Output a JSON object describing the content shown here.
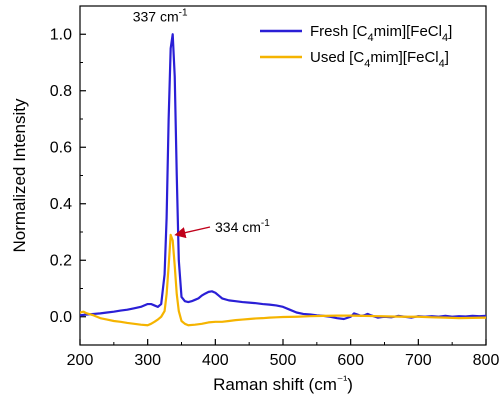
{
  "chart_data": {
    "type": "line",
    "title": "",
    "xlabel": "Raman shift (cm⁻¹)",
    "ylabel": "Normalized Intensity",
    "xlim": [
      200,
      800
    ],
    "ylim": [
      -0.1,
      1.1
    ],
    "x_ticks": [
      200,
      300,
      400,
      500,
      600,
      700,
      800
    ],
    "y_ticks": [
      0.0,
      0.2,
      0.4,
      0.6,
      0.8,
      1.0
    ],
    "x_tick_labels": [
      "200",
      "300",
      "400",
      "500",
      "600",
      "700",
      "800"
    ],
    "y_tick_labels": [
      "0.0",
      "0.2",
      "0.4",
      "0.6",
      "0.8",
      "1.0"
    ],
    "legend_position": "top-right",
    "series": [
      {
        "name": "Fresh [C4mim][FeCl4]",
        "legend_parts": {
          "prefix": "Fresh [C",
          "sub1": "4",
          "mid": "mim][FeCl",
          "sub2": "4",
          "suffix": "]"
        },
        "color": "#2a1fd6",
        "points": [
          [
            200,
            0.005
          ],
          [
            210,
            0.008
          ],
          [
            220,
            0.01
          ],
          [
            230,
            0.012
          ],
          [
            240,
            0.015
          ],
          [
            250,
            0.018
          ],
          [
            260,
            0.022
          ],
          [
            270,
            0.025
          ],
          [
            280,
            0.03
          ],
          [
            290,
            0.035
          ],
          [
            300,
            0.045
          ],
          [
            305,
            0.045
          ],
          [
            310,
            0.04
          ],
          [
            315,
            0.035
          ],
          [
            320,
            0.045
          ],
          [
            325,
            0.15
          ],
          [
            328,
            0.35
          ],
          [
            331,
            0.7
          ],
          [
            334,
            0.95
          ],
          [
            337,
            1.0
          ],
          [
            340,
            0.85
          ],
          [
            343,
            0.5
          ],
          [
            346,
            0.2
          ],
          [
            350,
            0.07
          ],
          [
            355,
            0.055
          ],
          [
            360,
            0.052
          ],
          [
            365,
            0.055
          ],
          [
            370,
            0.06
          ],
          [
            375,
            0.065
          ],
          [
            380,
            0.075
          ],
          [
            385,
            0.082
          ],
          [
            390,
            0.088
          ],
          [
            395,
            0.09
          ],
          [
            400,
            0.085
          ],
          [
            405,
            0.075
          ],
          [
            410,
            0.065
          ],
          [
            420,
            0.058
          ],
          [
            430,
            0.055
          ],
          [
            440,
            0.052
          ],
          [
            450,
            0.05
          ],
          [
            460,
            0.048
          ],
          [
            470,
            0.045
          ],
          [
            480,
            0.043
          ],
          [
            490,
            0.04
          ],
          [
            500,
            0.035
          ],
          [
            510,
            0.025
          ],
          [
            520,
            0.015
          ],
          [
            530,
            0.01
          ],
          [
            540,
            0.008
          ],
          [
            550,
            0.005
          ],
          [
            560,
            0.003
          ],
          [
            570,
            0.0
          ],
          [
            580,
            -0.005
          ],
          [
            590,
            -0.008
          ],
          [
            600,
            0.0
          ],
          [
            605,
            0.012
          ],
          [
            610,
            0.008
          ],
          [
            615,
            0.003
          ],
          [
            620,
            0.005
          ],
          [
            625,
            0.01
          ],
          [
            630,
            0.005
          ],
          [
            640,
            -0.003
          ],
          [
            650,
            0.0
          ],
          [
            660,
            -0.002
          ],
          [
            670,
            0.003
          ],
          [
            680,
            0.0
          ],
          [
            690,
            -0.003
          ],
          [
            700,
            0.002
          ],
          [
            710,
            0.0
          ],
          [
            720,
            0.002
          ],
          [
            730,
            0.0
          ],
          [
            740,
            0.003
          ],
          [
            750,
            0.0
          ],
          [
            760,
            0.002
          ],
          [
            770,
            0.001
          ],
          [
            780,
            0.003
          ],
          [
            790,
            0.002
          ],
          [
            800,
            0.003
          ]
        ]
      },
      {
        "name": "Used [C4mim][FeCl4]",
        "legend_parts": {
          "prefix": "Used  [C",
          "sub1": "4",
          "mid": "mim][FeCl",
          "sub2": "4",
          "suffix": "]"
        },
        "color": "#f5b400",
        "points": [
          [
            200,
            0.015
          ],
          [
            205,
            0.018
          ],
          [
            210,
            0.012
          ],
          [
            220,
            0.005
          ],
          [
            230,
            -0.005
          ],
          [
            240,
            -0.01
          ],
          [
            250,
            -0.015
          ],
          [
            260,
            -0.018
          ],
          [
            270,
            -0.022
          ],
          [
            280,
            -0.025
          ],
          [
            290,
            -0.028
          ],
          [
            300,
            -0.03
          ],
          [
            305,
            -0.025
          ],
          [
            310,
            -0.018
          ],
          [
            315,
            -0.01
          ],
          [
            320,
            0.0
          ],
          [
            325,
            0.02
          ],
          [
            328,
            0.08
          ],
          [
            331,
            0.18
          ],
          [
            334,
            0.29
          ],
          [
            337,
            0.27
          ],
          [
            340,
            0.18
          ],
          [
            343,
            0.08
          ],
          [
            346,
            0.02
          ],
          [
            350,
            -0.015
          ],
          [
            355,
            -0.025
          ],
          [
            360,
            -0.03
          ],
          [
            370,
            -0.028
          ],
          [
            380,
            -0.025
          ],
          [
            390,
            -0.02
          ],
          [
            400,
            -0.018
          ],
          [
            410,
            -0.018
          ],
          [
            420,
            -0.015
          ],
          [
            430,
            -0.012
          ],
          [
            440,
            -0.01
          ],
          [
            450,
            -0.008
          ],
          [
            460,
            -0.006
          ],
          [
            470,
            -0.005
          ],
          [
            480,
            -0.003
          ],
          [
            490,
            -0.002
          ],
          [
            500,
            -0.001
          ],
          [
            520,
            0.0
          ],
          [
            540,
            0.002
          ],
          [
            560,
            0.003
          ],
          [
            580,
            0.004
          ],
          [
            600,
            0.004
          ],
          [
            620,
            0.003
          ],
          [
            640,
            0.002
          ],
          [
            660,
            0.001
          ],
          [
            680,
            0.0
          ],
          [
            700,
            0.0
          ],
          [
            720,
            -0.002
          ],
          [
            740,
            -0.003
          ],
          [
            760,
            -0.005
          ],
          [
            780,
            -0.004
          ],
          [
            800,
            -0.003
          ]
        ]
      }
    ],
    "annotations": [
      {
        "text_main": "337 cm",
        "text_sup": "-1",
        "anchor_x": 337,
        "anchor_y": 1.0
      },
      {
        "text_main": "334 cm",
        "text_sup": "-1",
        "anchor_x": 334,
        "anchor_y": 0.29
      }
    ],
    "arrow_color": "#c0001a"
  }
}
